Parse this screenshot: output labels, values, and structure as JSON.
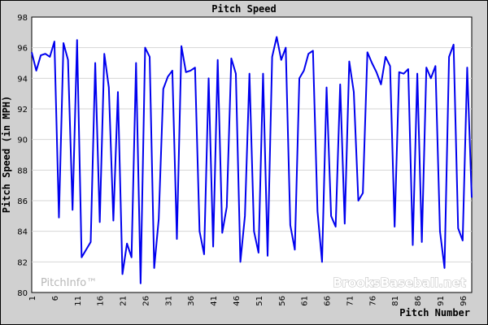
{
  "chart_data": {
    "type": "line",
    "title": "Pitch Speed",
    "xlabel": "Pitch Number",
    "ylabel": "Pitch Speed (in MPH)",
    "xlim": [
      1,
      98
    ],
    "ylim": [
      80,
      98
    ],
    "y_ticks": [
      80,
      82,
      84,
      86,
      88,
      90,
      92,
      94,
      96,
      98
    ],
    "x_ticks": [
      1,
      6,
      11,
      16,
      21,
      26,
      31,
      36,
      41,
      46,
      51,
      56,
      61,
      66,
      71,
      76,
      81,
      86,
      91,
      96
    ],
    "grid": "horizontal",
    "series": [
      {
        "color": "#0000ee",
        "x": [
          1,
          2,
          3,
          4,
          5,
          6,
          7,
          8,
          9,
          10,
          11,
          12,
          13,
          14,
          15,
          16,
          17,
          18,
          19,
          20,
          21,
          22,
          23,
          24,
          25,
          26,
          27,
          28,
          29,
          30,
          31,
          32,
          33,
          34,
          35,
          36,
          37,
          38,
          39,
          40,
          41,
          42,
          43,
          44,
          45,
          46,
          47,
          48,
          49,
          50,
          51,
          52,
          53,
          54,
          55,
          56,
          57,
          58,
          59,
          60,
          61,
          62,
          63,
          64,
          65,
          66,
          67,
          68,
          69,
          70,
          71,
          72,
          73,
          74,
          75,
          76,
          77,
          78,
          79,
          80,
          81,
          82,
          83,
          84,
          85,
          86,
          87,
          88,
          89,
          90,
          91,
          92,
          93,
          94,
          95,
          96,
          97,
          98
        ],
        "values": [
          95.7,
          94.5,
          95.5,
          95.6,
          95.4,
          96.4,
          84.9,
          96.3,
          95.2,
          85.4,
          96.5,
          82.3,
          82.8,
          83.3,
          95.0,
          84.6,
          95.6,
          93.4,
          84.7,
          93.1,
          81.2,
          83.2,
          82.3,
          95.0,
          80.6,
          96.0,
          95.4,
          81.6,
          84.8,
          93.3,
          94.1,
          94.5,
          83.5,
          96.1,
          94.4,
          94.5,
          94.7,
          84.0,
          82.5,
          94.0,
          83.0,
          95.2,
          83.9,
          85.6,
          95.3,
          94.3,
          82.0,
          85.0,
          94.3,
          84.0,
          82.6,
          94.3,
          82.4,
          95.4,
          96.7,
          95.2,
          96.0,
          84.4,
          82.8,
          94.0,
          94.5,
          95.6,
          95.8,
          85.3,
          82.0,
          93.4,
          85.0,
          84.3,
          93.6,
          84.5,
          95.1,
          93.1,
          86.0,
          86.5,
          95.7,
          95.0,
          94.4,
          93.6,
          95.4,
          94.8,
          84.3,
          94.4,
          94.3,
          94.6,
          83.1,
          94.3,
          83.3,
          94.7,
          94.0,
          94.8,
          84.0,
          81.6,
          95.4,
          96.2,
          84.2,
          83.4,
          94.7,
          86.2
        ]
      }
    ]
  },
  "watermarks": {
    "left": "PitchInfo™",
    "right": "BrooksBaseball.net"
  }
}
